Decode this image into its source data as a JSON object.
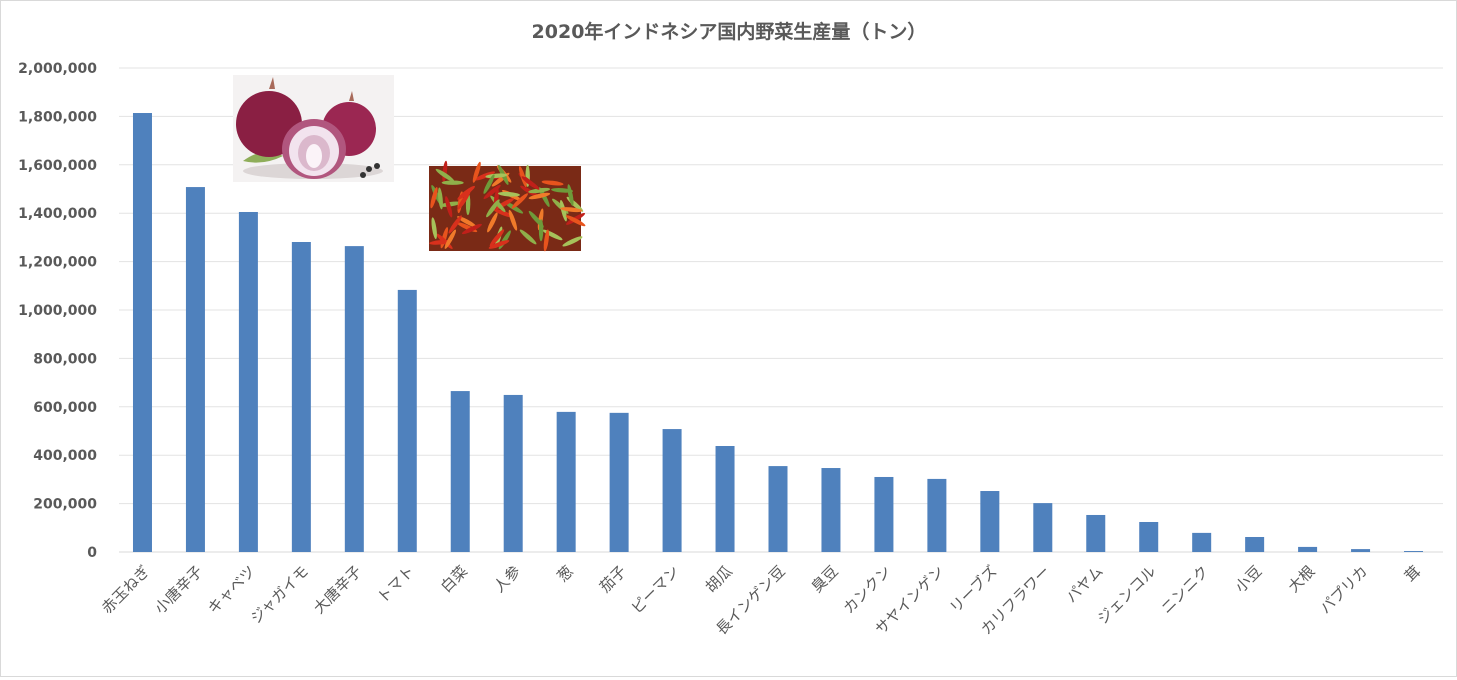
{
  "chart_data": {
    "type": "bar",
    "title": "2020年インドネシア国内野菜生産量（トン）",
    "xlabel": "",
    "ylabel": "",
    "ylim": [
      0,
      2000000
    ],
    "yticks": [
      "0",
      "200,000",
      "400,000",
      "600,000",
      "800,000",
      "1,000,000",
      "1,200,000",
      "1,400,000",
      "1,600,000",
      "1,800,000",
      "2,000,000"
    ],
    "grid": true,
    "legend": "none",
    "bar_color": "#4f81bd",
    "categories": [
      "赤玉ねぎ",
      "小唐辛子",
      "キャベツ",
      "ジャガイモ",
      "大唐辛子",
      "トマト",
      "白菜",
      "人参",
      "葱",
      "茄子",
      "ピーマン",
      "胡瓜",
      "長インゲン豆",
      "臭豆",
      "カンクン",
      "サヤインゲン",
      "リーブズ",
      "カリフラワー",
      "パヤム",
      "ジェンコル",
      "ニンニク",
      "小豆",
      "大根",
      "パプリカ",
      "茸"
    ],
    "values": [
      1814000,
      1508000,
      1405000,
      1281000,
      1264000,
      1083000,
      665000,
      649000,
      579000,
      575000,
      508000,
      438000,
      355000,
      347000,
      310000,
      302000,
      252000,
      202000,
      153000,
      124000,
      79000,
      62000,
      21000,
      12000,
      4000
    ]
  },
  "images": [
    "red-onion-photo",
    "chili-peppers-photo"
  ]
}
